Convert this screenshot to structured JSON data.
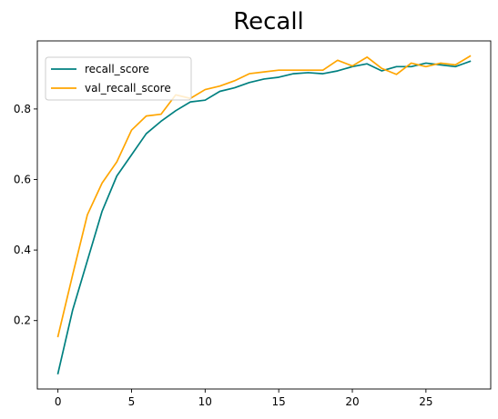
{
  "chart_data": {
    "type": "line",
    "title": "Recall",
    "xlabel": "",
    "ylabel": "",
    "xlim": [
      -1.4,
      29.4
    ],
    "ylim": [
      0.006,
      0.993
    ],
    "xticks": [
      0,
      5,
      10,
      15,
      20,
      25
    ],
    "yticks": [
      0.2,
      0.4,
      0.6,
      0.8
    ],
    "ytick_labels": [
      "0.2",
      "0.4",
      "0.6",
      "0.8"
    ],
    "grid": false,
    "legend_position": "upper-left",
    "x": [
      0,
      1,
      2,
      3,
      4,
      5,
      6,
      7,
      8,
      9,
      10,
      11,
      12,
      13,
      14,
      15,
      16,
      17,
      18,
      19,
      20,
      21,
      22,
      23,
      24,
      25,
      26,
      27,
      28
    ],
    "series": [
      {
        "name": "recall_score",
        "color": "#008080",
        "values": [
          0.05,
          0.23,
          0.37,
          0.51,
          0.61,
          0.67,
          0.73,
          0.765,
          0.795,
          0.82,
          0.825,
          0.85,
          0.86,
          0.875,
          0.885,
          0.89,
          0.9,
          0.903,
          0.9,
          0.908,
          0.92,
          0.928,
          0.908,
          0.92,
          0.92,
          0.93,
          0.925,
          0.92,
          0.935
        ]
      },
      {
        "name": "val_recall_score",
        "color": "#FFA500",
        "values": [
          0.155,
          0.33,
          0.5,
          0.59,
          0.65,
          0.74,
          0.78,
          0.785,
          0.84,
          0.83,
          0.855,
          0.865,
          0.88,
          0.9,
          0.905,
          0.91,
          0.91,
          0.91,
          0.91,
          0.938,
          0.922,
          0.947,
          0.915,
          0.898,
          0.93,
          0.92,
          0.93,
          0.925,
          0.95
        ]
      }
    ]
  }
}
